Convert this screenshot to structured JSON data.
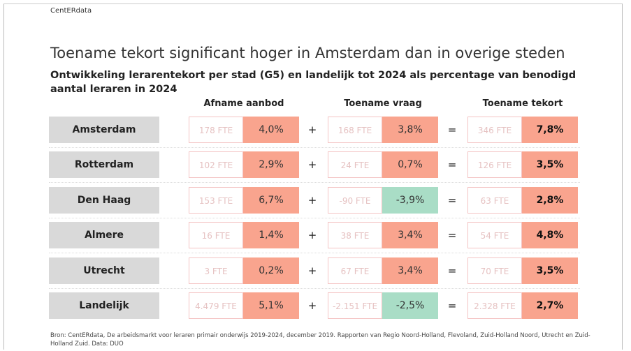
{
  "header": {
    "brand": "CentERdata",
    "title": "Toename tekort significant hoger in Amsterdam dan in overige steden",
    "subtitle": "Ontwikkeling lerarentekort per stad (G5) en landelijk tot 2024 als percentage van benodigd aantal leraren in 2024"
  },
  "table": {
    "columns": [
      "Afname aanbod",
      "Toename vraag",
      "Toename tekort"
    ],
    "operators": [
      "+",
      "="
    ],
    "colors": {
      "positive": "#f9a48e",
      "negative": "#a9ddc6",
      "label": "#d9d9d9"
    },
    "rows": [
      {
        "label": "Amsterdam",
        "cells": [
          [
            "178 FTE",
            "4,0%"
          ],
          [
            "168 FTE",
            "3,8%"
          ],
          [
            "346 FTE",
            "7,8%"
          ]
        ]
      },
      {
        "label": "Rotterdam",
        "cells": [
          [
            "102 FTE",
            "2,9%"
          ],
          [
            "24 FTE",
            "0,7%"
          ],
          [
            "126 FTE",
            "3,5%"
          ]
        ]
      },
      {
        "label": "Den Haag",
        "cells": [
          [
            "153 FTE",
            "6,7%"
          ],
          [
            "-90 FTE",
            "-3,9%"
          ],
          [
            "63 FTE",
            "2,8%"
          ]
        ]
      },
      {
        "label": "Almere",
        "cells": [
          [
            "16 FTE",
            "1,4%"
          ],
          [
            "38 FTE",
            "3,4%"
          ],
          [
            "54 FTE",
            "4,8%"
          ]
        ]
      },
      {
        "label": "Utrecht",
        "cells": [
          [
            "3 FTE",
            "0,2%"
          ],
          [
            "67 FTE",
            "3,4%"
          ],
          [
            "70 FTE",
            "3,5%"
          ]
        ]
      },
      {
        "label": "Landelijk",
        "cells": [
          [
            "4.479 FTE",
            "5,1%"
          ],
          [
            "-2.151 FTE",
            "-2,5%"
          ],
          [
            "2.328 FTE",
            "2,7%"
          ]
        ]
      }
    ]
  },
  "footer": "Bron: CentERdata, De arbeidsmarkt voor leraren primair onderwijs 2019-2024, december 2019. Rapporten van Regio Noord-Holland, Flevoland, Zuid-Holland Noord, Utrecht en Zuid-Holland Zuid. Data: DUO"
}
